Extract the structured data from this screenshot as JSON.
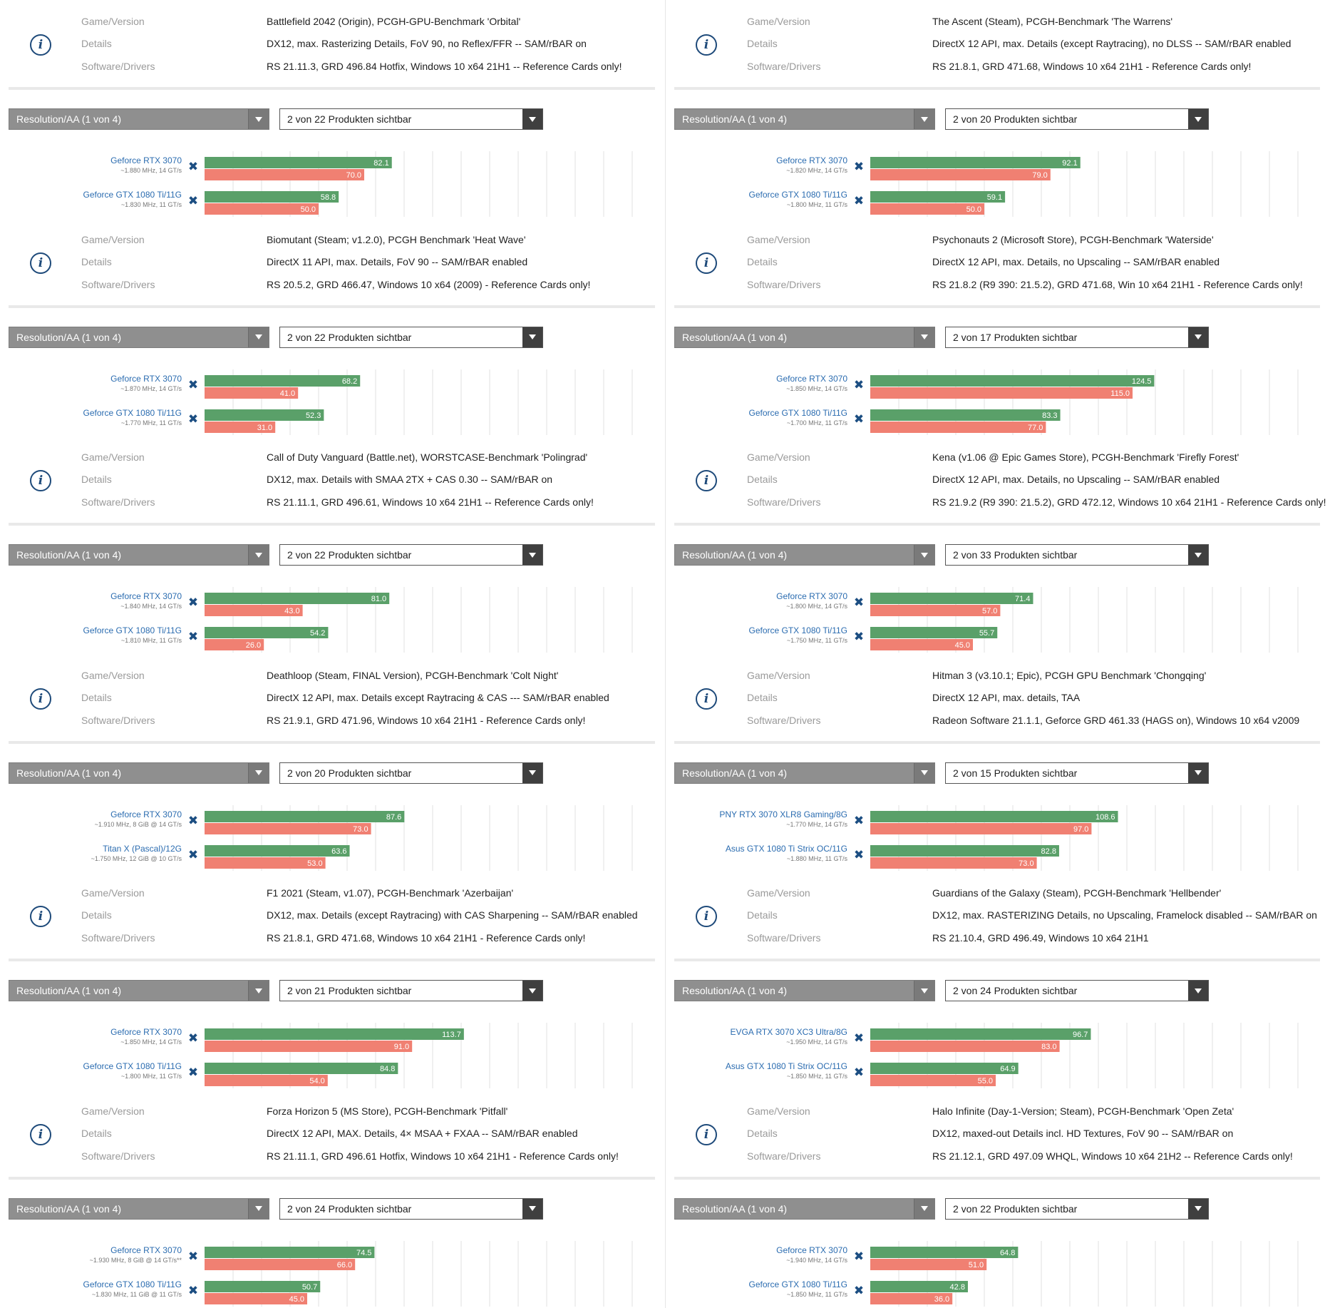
{
  "info_labels": {
    "game": "Game/Version",
    "details": "Details",
    "software": "Software/Drivers"
  },
  "info_icon_glyph": "i",
  "res_selector_label": "Resolution/AA (1 von 4)",
  "colors": {
    "bar_green": "#5aa069",
    "bar_red": "#f08072",
    "gpu_name": "#2b6cb0",
    "spec_text": "#777777",
    "remove_x": "#1c4e82",
    "gridline": "#e2e2e2"
  },
  "panels": [
    {
      "game": "Battlefield 2042 (Origin), PCGH-GPU-Benchmark 'Orbital'",
      "details": "DX12, max. Rasterizing Details, FoV 90, no Reflex/FFR -- SAM/rBAR on",
      "software": "RS 21.11.3, GRD 496.84 Hotfix, Windows 10 x64 21H1 -- Reference Cards only!",
      "products_label": "2 von 22 Produkten sichtbar",
      "chart_data": {
        "type": "bar",
        "series": [
          {
            "gpu": "Geforce RTX 3070",
            "spec": "~1.880 MHz, 14 GT/s",
            "values": [
              82.1,
              70.0
            ]
          },
          {
            "gpu": "Geforce GTX 1080 Ti/11G",
            "spec": "~1.830 MHz, 11 GT/s",
            "values": [
              58.8,
              50.0
            ]
          }
        ]
      }
    },
    {
      "game": "Biomutant (Steam; v1.2.0), PCGH Benchmark 'Heat Wave'",
      "details": "DirectX 11 API, max. Details, FoV 90 -- SAM/rBAR enabled",
      "software": "RS 20.5.2, GRD 466.47, Windows 10 x64 (2009) - Reference Cards only!",
      "products_label": "2 von 22 Produkten sichtbar",
      "chart_data": {
        "type": "bar",
        "series": [
          {
            "gpu": "Geforce RTX 3070",
            "spec": "~1.870 MHz, 14 GT/s",
            "values": [
              68.2,
              41.0
            ]
          },
          {
            "gpu": "Geforce GTX 1080 Ti/11G",
            "spec": "~1.770 MHz, 11 GT/s",
            "values": [
              52.3,
              31.0
            ]
          }
        ]
      }
    },
    {
      "game": "Call of Duty Vanguard (Battle.net), WORSTCASE-Benchmark 'Polingrad'",
      "details": "DX12, max. Details with SMAA 2TX + CAS 0.30 -- SAM/rBAR on",
      "software": "RS 21.11.1, GRD 496.61, Windows 10 x64 21H1 -- Reference Cards only!",
      "products_label": "2 von 22 Produkten sichtbar",
      "chart_data": {
        "type": "bar",
        "series": [
          {
            "gpu": "Geforce RTX 3070",
            "spec": "~1.840 MHz, 14 GT/s",
            "values": [
              81.0,
              43.0
            ]
          },
          {
            "gpu": "Geforce GTX 1080 Ti/11G",
            "spec": "~1.810 MHz, 11 GT/s",
            "values": [
              54.2,
              26.0
            ]
          }
        ]
      }
    },
    {
      "game": "Deathloop (Steam, FINAL Version), PCGH-Benchmark 'Colt Night'",
      "details": "DirectX 12 API, max. Details except Raytracing & CAS --- SAM/rBAR enabled",
      "software": "RS 21.9.1, GRD 471.96, Windows 10 x64 21H1 - Reference Cards only!",
      "products_label": "2 von 20 Produkten sichtbar",
      "chart_data": {
        "type": "bar",
        "series": [
          {
            "gpu": "Geforce RTX 3070",
            "spec": "~1.910 MHz, 8 GiB @ 14 GT/s",
            "values": [
              87.6,
              73.0
            ]
          },
          {
            "gpu": "Titan X (Pascal)/12G",
            "spec": "~1.750 MHz, 12 GiB @ 10 GT/s",
            "values": [
              63.6,
              53.0
            ]
          }
        ]
      }
    },
    {
      "game": "F1 2021 (Steam, v1.07), PCGH-Benchmark 'Azerbaijan'",
      "details": "DX12, max. Details (except Raytracing) with CAS Sharpening -- SAM/rBAR enabled",
      "software": "RS 21.8.1, GRD 471.68, Windows 10 x64 21H1 - Reference Cards only!",
      "products_label": "2 von 21 Produkten sichtbar",
      "chart_data": {
        "type": "bar",
        "series": [
          {
            "gpu": "Geforce RTX 3070",
            "spec": "~1.850 MHz, 14 GT/s",
            "values": [
              113.7,
              91.0
            ]
          },
          {
            "gpu": "Geforce GTX 1080 Ti/11G",
            "spec": "~1.800 MHz, 11 GT/s",
            "values": [
              84.8,
              54.0
            ]
          }
        ]
      }
    },
    {
      "game": "Forza Horizon 5 (MS Store), PCGH-Benchmark 'Pitfall'",
      "details": "DirectX 12 API, MAX. Details, 4× MSAA + FXAA -- SAM/rBAR enabled",
      "software": "RS 21.11.1, GRD 496.61 Hotfix, Windows 10 x64 21H1 - Reference Cards only!",
      "products_label": "2 von 24 Produkten sichtbar",
      "chart_data": {
        "type": "bar",
        "series": [
          {
            "gpu": "Geforce RTX 3070",
            "spec": "~1.930 MHz, 8 GiB @ 14 GT/s**",
            "values": [
              74.5,
              66.0
            ]
          },
          {
            "gpu": "Geforce GTX 1080 Ti/11G",
            "spec": "~1.830 MHz, 11 GiB @ 11 GT/s",
            "values": [
              50.7,
              45.0
            ]
          }
        ]
      }
    },
    {
      "game": "The Ascent (Steam), PCGH-Benchmark 'The Warrens'",
      "details": "DirectX 12 API, max. Details (except Raytracing), no DLSS -- SAM/rBAR enabled",
      "software": "RS 21.8.1, GRD 471.68, Windows 10 x64 21H1 - Reference Cards only!",
      "products_label": "2 von 20 Produkten sichtbar",
      "chart_data": {
        "type": "bar",
        "series": [
          {
            "gpu": "Geforce RTX 3070",
            "spec": "~1.820 MHz, 14 GT/s",
            "values": [
              92.1,
              79.0
            ]
          },
          {
            "gpu": "Geforce GTX 1080 Ti/11G",
            "spec": "~1.800 MHz, 11 GT/s",
            "values": [
              59.1,
              50.0
            ]
          }
        ]
      }
    },
    {
      "game": "Psychonauts 2 (Microsoft Store), PCGH-Benchmark 'Waterside'",
      "details": "DirectX 12 API, max. Details, no Upscaling -- SAM/rBAR enabled",
      "software": "RS 21.8.2 (R9 390: 21.5.2), GRD 471.68, Win 10 x64 21H1 - Reference Cards only!",
      "products_label": "2 von 17 Produkten sichtbar",
      "chart_data": {
        "type": "bar",
        "series": [
          {
            "gpu": "Geforce RTX 3070",
            "spec": "~1.850 MHz, 14 GT/s",
            "values": [
              124.5,
              115.0
            ]
          },
          {
            "gpu": "Geforce GTX 1080 Ti/11G",
            "spec": "~1.700 MHz, 11 GT/s",
            "values": [
              83.3,
              77.0
            ]
          }
        ]
      }
    },
    {
      "game": "Kena (v1.06 @ Epic Games Store), PCGH-Benchmark 'Firefly Forest'",
      "details": "DirectX 12 API, max. Details, no Upscaling -- SAM/rBAR enabled",
      "software": "RS 21.9.2 (R9 390: 21.5.2), GRD 472.12, Windows 10 x64 21H1 - Reference Cards only!",
      "products_label": "2 von 33 Produkten sichtbar",
      "chart_data": {
        "type": "bar",
        "series": [
          {
            "gpu": "Geforce RTX 3070",
            "spec": "~1.800 MHz, 14 GT/s",
            "values": [
              71.4,
              57.0
            ]
          },
          {
            "gpu": "Geforce GTX 1080 Ti/11G",
            "spec": "~1.750 MHz, 11 GT/s",
            "values": [
              55.7,
              45.0
            ]
          }
        ]
      }
    },
    {
      "game": "Hitman 3 (v3.10.1; Epic), PCGH GPU Benchmark 'Chongqing'",
      "details": "DirectX 12 API, max. details, TAA",
      "software": "Radeon Software 21.1.1, Geforce GRD 461.33 (HAGS on), Windows 10 x64 v2009",
      "products_label": "2 von 15 Produkten sichtbar",
      "chart_data": {
        "type": "bar",
        "series": [
          {
            "gpu": "PNY RTX 3070 XLR8 Gaming/8G",
            "spec": "~1.770 MHz, 14 GT/s",
            "values": [
              108.6,
              97.0
            ]
          },
          {
            "gpu": "Asus GTX 1080 Ti Strix OC/11G",
            "spec": "~1.880 MHz, 11 GT/s",
            "values": [
              82.8,
              73.0
            ]
          }
        ]
      }
    },
    {
      "game": "Guardians of the Galaxy (Steam), PCGH-Benchmark 'Hellbender'",
      "details": "DX12, max. RASTERIZING Details, no Upscaling, Framelock disabled -- SAM/rBAR on",
      "software": "RS 21.10.4, GRD 496.49, Windows 10 x64 21H1",
      "products_label": "2 von 24 Produkten sichtbar",
      "chart_data": {
        "type": "bar",
        "series": [
          {
            "gpu": "EVGA RTX 3070 XC3 Ultra/8G",
            "spec": "~1.950 MHz, 14 GT/s",
            "values": [
              96.7,
              83.0
            ]
          },
          {
            "gpu": "Asus GTX 1080 Ti Strix OC/11G",
            "spec": "~1.850 MHz, 11 GT/s",
            "values": [
              64.9,
              55.0
            ]
          }
        ]
      }
    },
    {
      "game": "Halo Infinite (Day-1-Version; Steam), PCGH-Benchmark 'Open Zeta'",
      "details": "DX12, maxed-out Details incl. HD Textures, FoV 90 -- SAM/rBAR on",
      "software": "RS 21.12.1, GRD 497.09 WHQL, Windows 10 x64 21H2 -- Reference Cards only!",
      "products_label": "2 von 22 Produkten sichtbar",
      "chart_data": {
        "type": "bar",
        "series": [
          {
            "gpu": "Geforce RTX 3070",
            "spec": "~1.940 MHz, 14 GT/s",
            "values": [
              64.8,
              51.0
            ]
          },
          {
            "gpu": "Geforce GTX 1080 Ti/11G",
            "spec": "~1.850 MHz, 11 GT/s",
            "values": [
              42.8,
              36.0
            ]
          }
        ]
      }
    }
  ]
}
